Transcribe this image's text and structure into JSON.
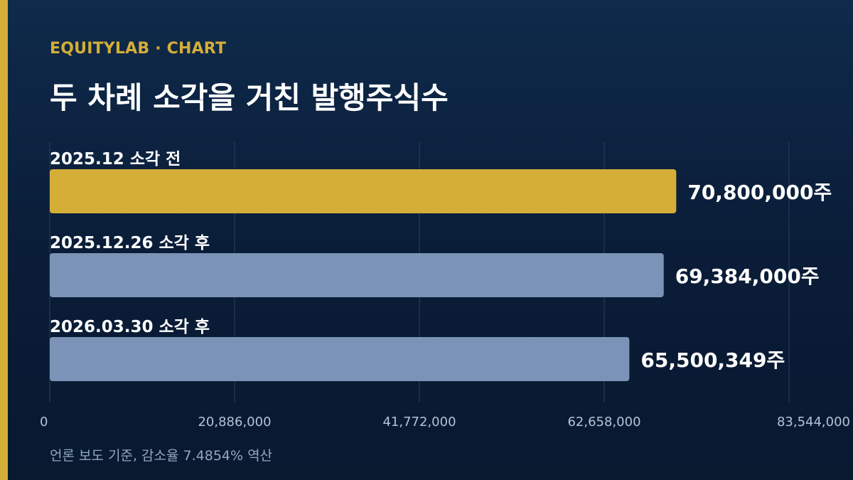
{
  "header": {
    "brand": "EQUITYLAB · CHART",
    "title": "두 차례 소각을 거친 발행주식수"
  },
  "footnote": "언론 보도 기준, 감소율 7.4854% 역산",
  "colors": {
    "background": "#0b1f3a",
    "accent": "#d4ae37",
    "bar_primary": "#d4ae37",
    "bar_secondary": "#7b93b6",
    "grid": "#2a3f5c",
    "tick_text": "#b4c2d6"
  },
  "chart_data": {
    "type": "bar",
    "orientation": "horizontal",
    "title": "두 차례 소각을 거친 발행주식수",
    "categories": [
      "2025.12 소각 전",
      "2025.12.26 소각 후",
      "2026.03.30 소각 후"
    ],
    "values": [
      70800000,
      69384000,
      65500349
    ],
    "value_labels": [
      "70,800,000주",
      "69,384,000주",
      "65,500,349주"
    ],
    "xlim": [
      0,
      83544000
    ],
    "x_ticks": [
      0,
      20886000,
      41772000,
      62658000,
      83544000
    ],
    "x_tick_labels": [
      "0",
      "20,886,000",
      "41,772,000",
      "62,658,000",
      "83,544,000"
    ],
    "grid": true,
    "legend": "none"
  }
}
